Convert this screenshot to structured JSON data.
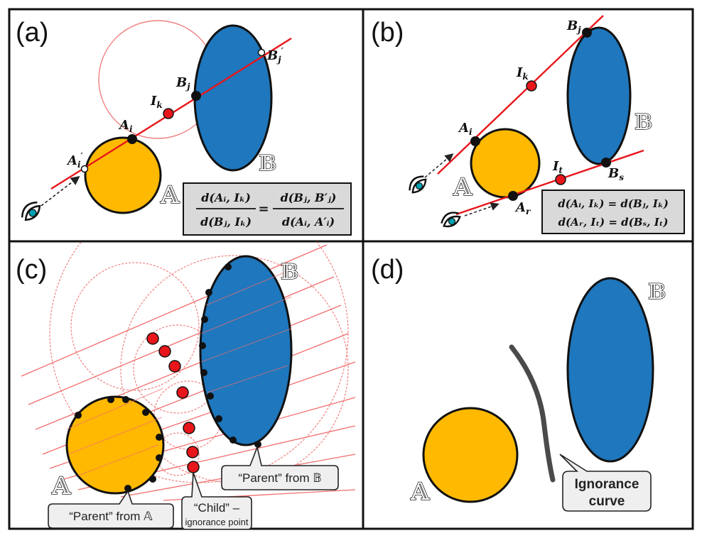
{
  "panels": {
    "a": {
      "label": "(a)",
      "set_a": "𝔸",
      "set_b": "𝔹",
      "points": {
        "ai": {
          "base": "A",
          "sub": "i"
        },
        "ai_prime": {
          "base": "A",
          "sub": "i",
          "sup": "′"
        },
        "ik": {
          "base": "I",
          "sub": "k"
        },
        "bj": {
          "base": "B",
          "sub": "j"
        },
        "bj_prime": {
          "base": "B",
          "sub": "j",
          "sup": "′"
        }
      },
      "equation": {
        "lhs_num": "d(Aᵢ, Iₖ)",
        "lhs_den": "d(Bⱼ, Iₖ)",
        "equals": "=",
        "rhs_num": "d(Bⱼ, B′ⱼ)",
        "rhs_den": "d(Aᵢ, A′ᵢ)"
      }
    },
    "b": {
      "label": "(b)",
      "set_a": "𝔸",
      "set_b": "𝔹",
      "points": {
        "ai": {
          "base": "A",
          "sub": "i"
        },
        "ar": {
          "base": "A",
          "sub": "r"
        },
        "ik": {
          "base": "I",
          "sub": "k"
        },
        "it": {
          "base": "I",
          "sub": "t"
        },
        "bj": {
          "base": "B",
          "sub": "j"
        },
        "bs": {
          "base": "B",
          "sub": "s"
        }
      },
      "equations": [
        "d(Aᵢ, Iₖ) = d(Bⱼ, Iₖ)",
        "d(Aᵣ, Iₜ) = d(Bₛ, Iₜ)"
      ]
    },
    "c": {
      "label": "(c)",
      "set_a": "𝔸",
      "set_b": "𝔹",
      "callouts": {
        "parent_a": "“Parent” from 𝔸",
        "parent_b": "“Parent” from 𝔹",
        "child_line1": "“Child” –",
        "child_line2": "ignorance point"
      }
    },
    "d": {
      "label": "(d)",
      "set_a": "𝔸",
      "set_b": "𝔹",
      "callout_line1": "Ignorance",
      "callout_line2": "curve"
    }
  },
  "colors": {
    "set_a_fill": "#FFB900",
    "set_b_fill": "#1F77BD",
    "ray": "#E8161B",
    "ignorance_point": "#E8161B",
    "helper_circle": "#F08080",
    "ignorance_curve": "#4A4A4A",
    "callout_fill": "#EFEFEF",
    "equation_box_fill": "#D9D9D9"
  }
}
